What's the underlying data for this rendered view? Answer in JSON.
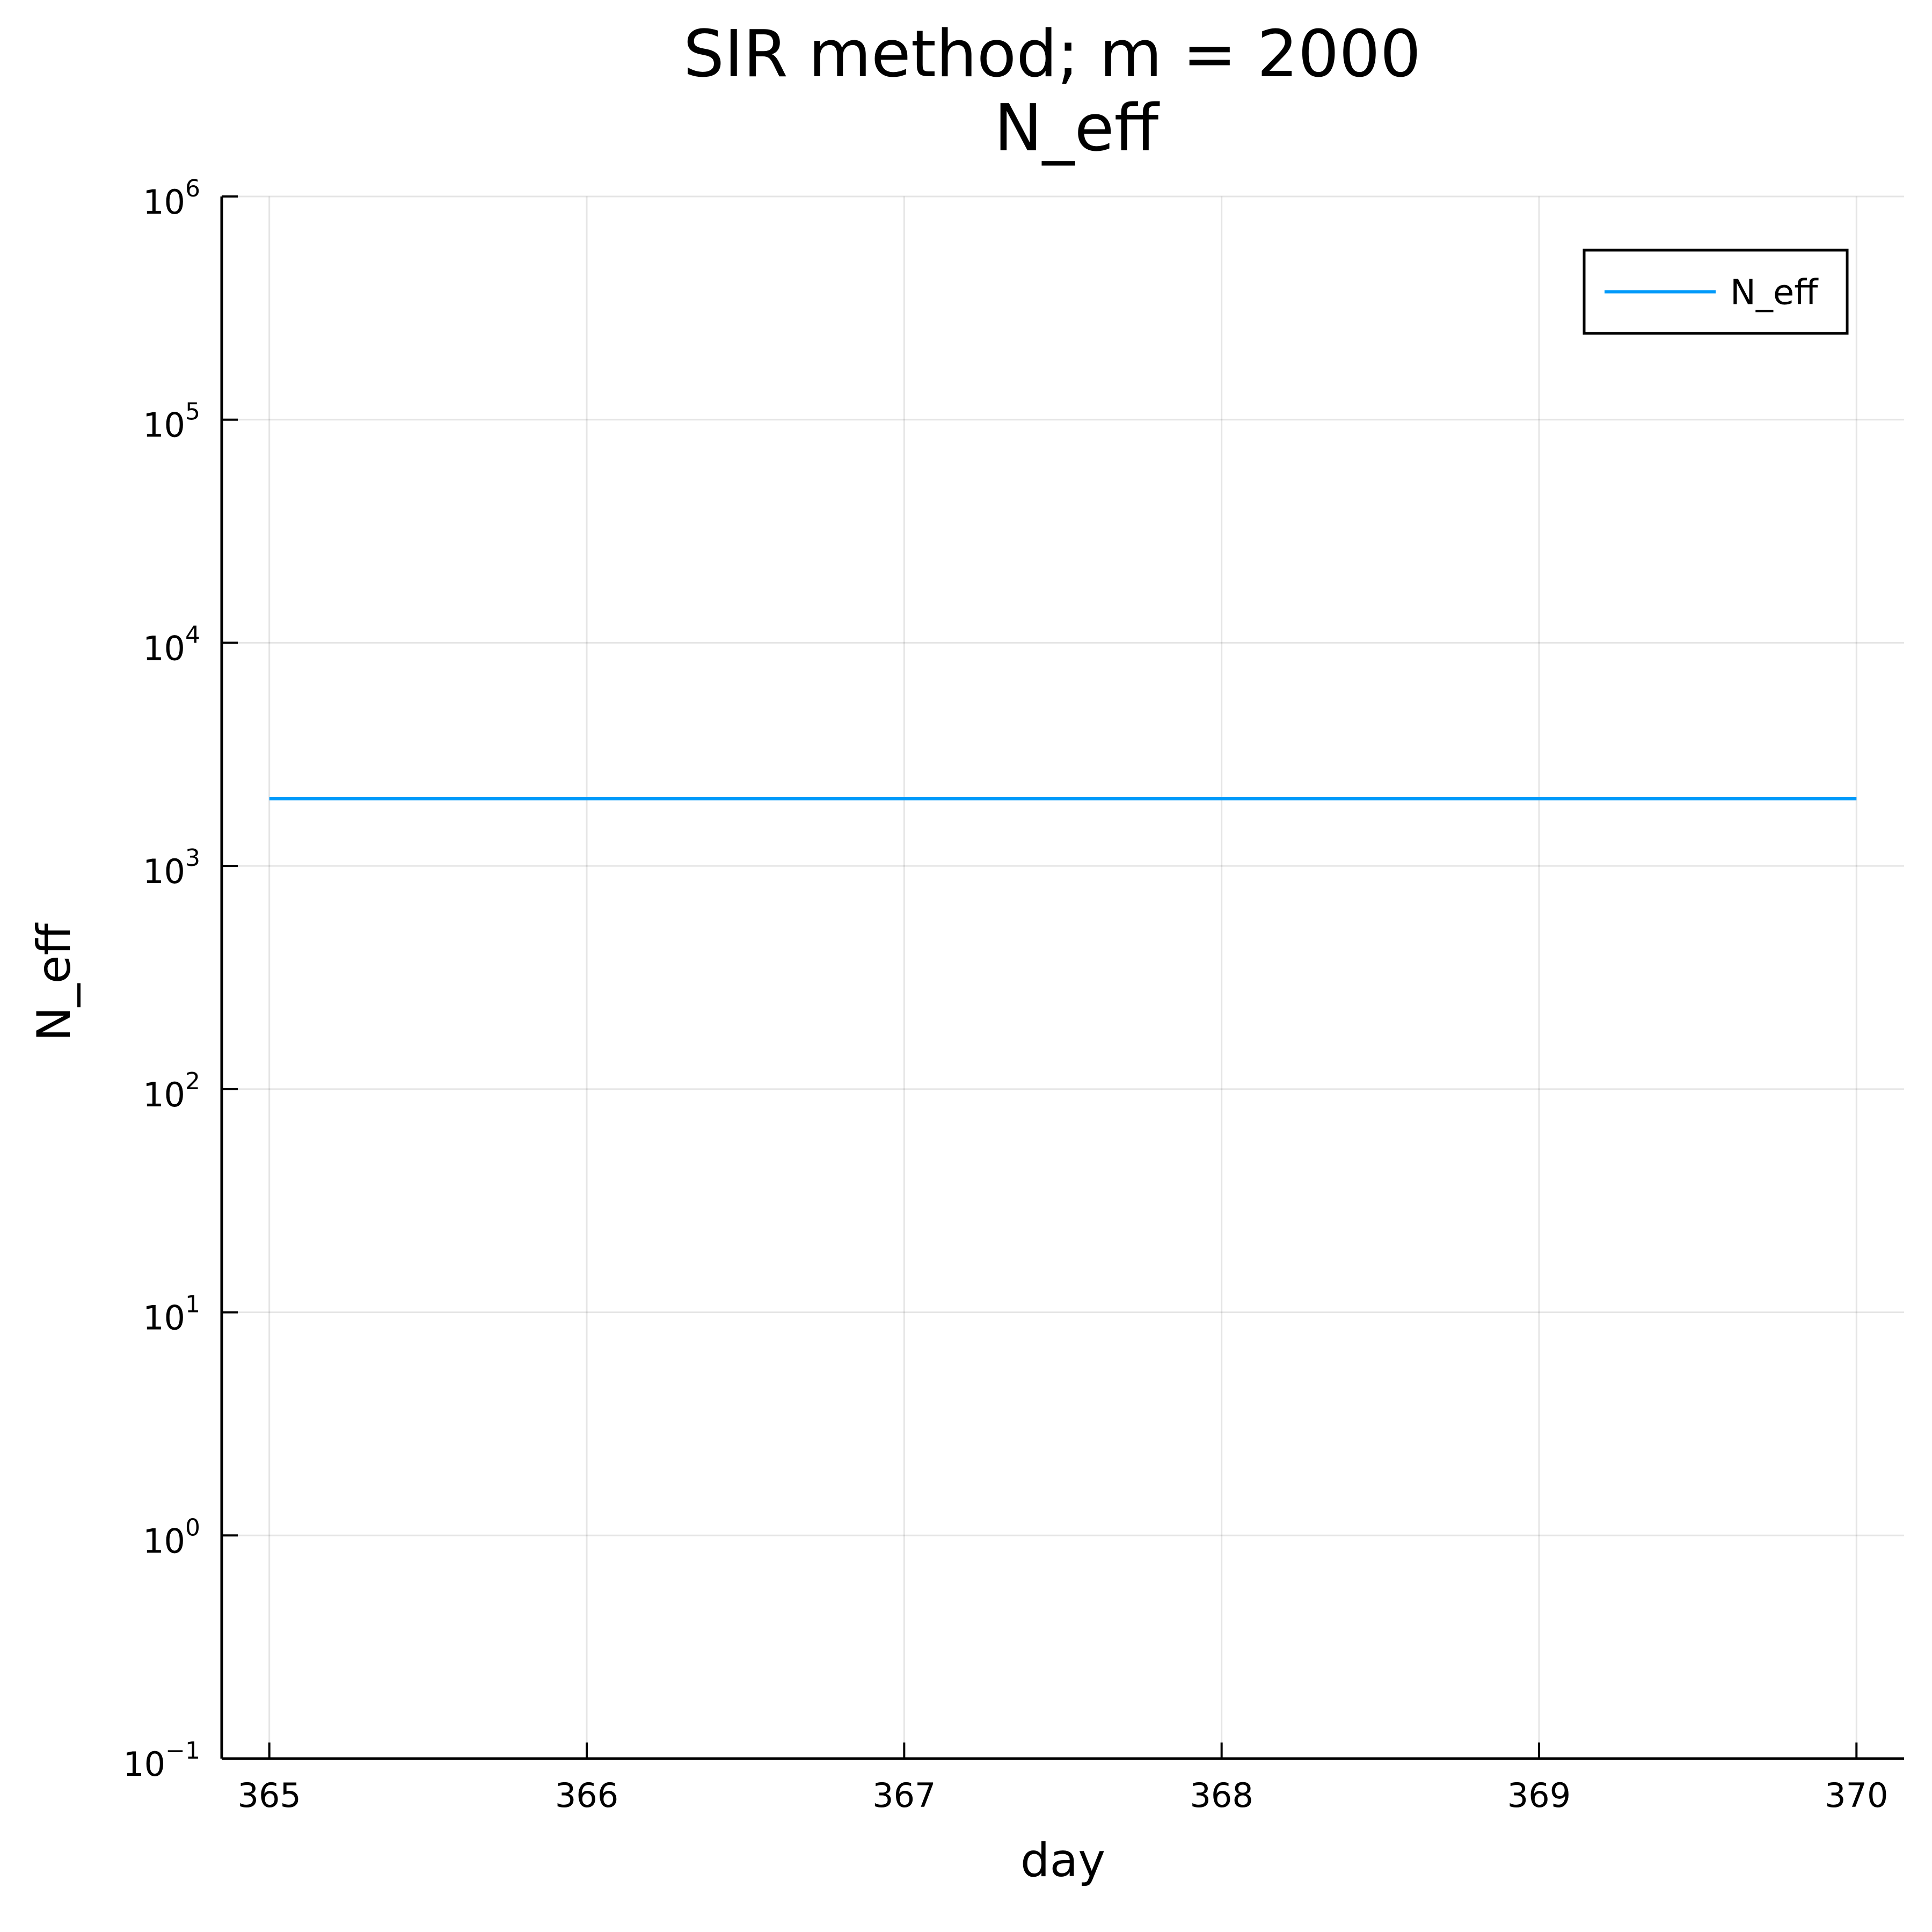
{
  "chart_data": {
    "type": "line",
    "title": "SIR method; m = 2000",
    "subtitle": "N_eff",
    "xlabel": "day",
    "ylabel": "N_eff",
    "xlim": [
      364.85,
      370.15
    ],
    "ylim": [
      0.1,
      1000000
    ],
    "yscale": "log",
    "x_ticks": [
      365,
      366,
      367,
      368,
      369,
      370
    ],
    "x_tick_labels": [
      "365",
      "366",
      "367",
      "368",
      "369",
      "370"
    ],
    "y_ticks": [
      0.1,
      1,
      10,
      100,
      1000,
      10000,
      100000,
      1000000
    ],
    "y_tick_labels": [
      {
        "base": "10",
        "exp": "−1"
      },
      {
        "base": "10",
        "exp": "0"
      },
      {
        "base": "10",
        "exp": "1"
      },
      {
        "base": "10",
        "exp": "2"
      },
      {
        "base": "10",
        "exp": "3"
      },
      {
        "base": "10",
        "exp": "4"
      },
      {
        "base": "10",
        "exp": "5"
      },
      {
        "base": "10",
        "exp": "6"
      }
    ],
    "grid": true,
    "legend_position": "top-right",
    "series": [
      {
        "name": "N_eff",
        "color": "#009AFA",
        "x": [
          365,
          366,
          367,
          368,
          369,
          370
        ],
        "y": [
          2000,
          2000,
          2000,
          2000,
          2000,
          2000
        ]
      }
    ]
  }
}
